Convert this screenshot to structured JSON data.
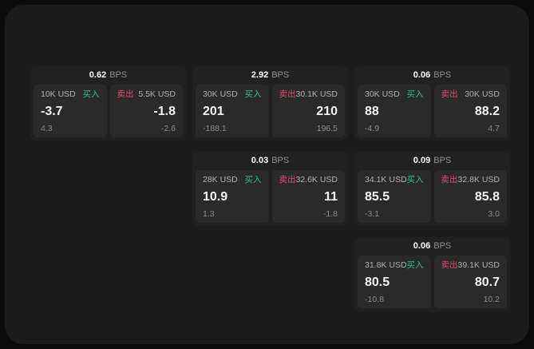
{
  "labels": {
    "buy": "买入",
    "sell": "卖出",
    "bps": "BPS"
  },
  "colors": {
    "outer_background": "#0b0b0b",
    "panel_background": "#1c1c1d",
    "card_background": "#212122",
    "subcard_background": "#2a2a2b",
    "buy_accent": "#2ebd85",
    "sell_accent": "#e0486d",
    "primary_text": "#f5f5f5",
    "muted_text": "#8a8a8a"
  },
  "cards": [
    {
      "bps": "0.62",
      "buy": {
        "amount": "10K USD",
        "value": "-3.7",
        "delta": "4.3"
      },
      "sell": {
        "amount": "5.5K USD",
        "value": "-1.8",
        "delta": "-2.6"
      }
    },
    {
      "bps": "2.92",
      "buy": {
        "amount": "30K USD",
        "value": "201",
        "delta": "-188.1"
      },
      "sell": {
        "amount": "30.1K USD",
        "value": "210",
        "delta": "196.5"
      }
    },
    {
      "bps": "0.06",
      "buy": {
        "amount": "30K USD",
        "value": "88",
        "delta": "-4.9"
      },
      "sell": {
        "amount": "30K USD",
        "value": "88.2",
        "delta": "4.7"
      }
    },
    {
      "bps": "0.03",
      "buy": {
        "amount": "28K USD",
        "value": "10.9",
        "delta": "1.3"
      },
      "sell": {
        "amount": "32.6K USD",
        "value": "11",
        "delta": "-1.8"
      }
    },
    {
      "bps": "0.09",
      "buy": {
        "amount": "34.1K USD",
        "value": "85.5",
        "delta": "-3.1"
      },
      "sell": {
        "amount": "32.8K USD",
        "value": "85.8",
        "delta": "3.0"
      }
    },
    {
      "bps": "0.06",
      "buy": {
        "amount": "31.8K USD",
        "value": "80.5",
        "delta": "-10.8"
      },
      "sell": {
        "amount": "39.1K USD",
        "value": "80.7",
        "delta": "10.2"
      }
    }
  ]
}
